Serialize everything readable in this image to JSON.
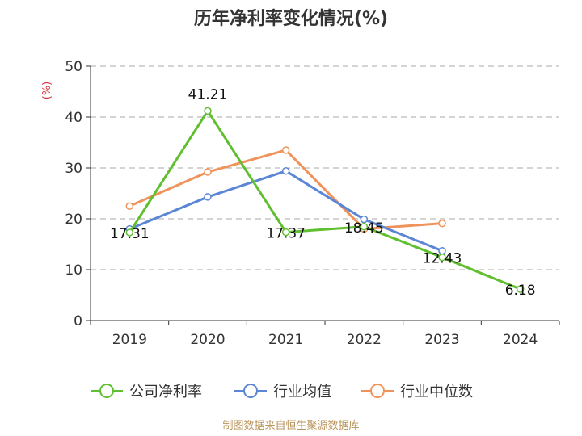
{
  "chart_data": {
    "type": "line",
    "title": "历年净利率变化情况(%)",
    "unit_label": "(%)",
    "categories": [
      "2019",
      "2020",
      "2021",
      "2022",
      "2023",
      "2024"
    ],
    "ylim": [
      0,
      50
    ],
    "yticks": [
      "0",
      "10",
      "20",
      "30",
      "40",
      "50"
    ],
    "grid": "horizontal-dashed",
    "legend_position": "bottom",
    "series": [
      {
        "name": "公司净利率",
        "color": "#5fbf2f",
        "values": [
          17.31,
          41.21,
          17.37,
          18.45,
          12.43,
          6.18
        ],
        "labels": [
          "17.31",
          "41.21",
          "17.37",
          "18.45",
          "12.43",
          "6.18"
        ]
      },
      {
        "name": "行业均值",
        "color": "#5b86d6",
        "values": [
          18.0,
          24.3,
          29.4,
          19.9,
          13.7,
          null
        ]
      },
      {
        "name": "行业中位数",
        "color": "#f0935a",
        "values": [
          22.5,
          29.2,
          33.5,
          18.0,
          19.1,
          null
        ]
      }
    ]
  },
  "source_text": "制图数据来自恒生聚源数据库"
}
